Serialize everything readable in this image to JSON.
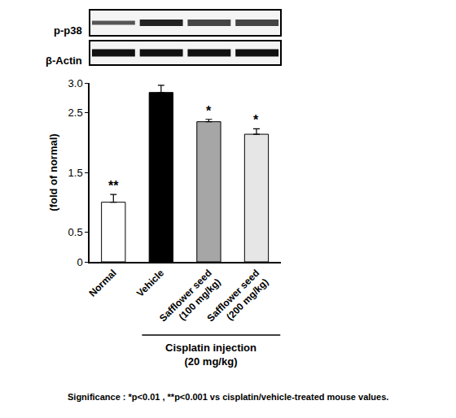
{
  "chart_data": {
    "type": "bar",
    "ylabel": "(fold of normal)",
    "categories": [
      "Normal",
      "Vehicle",
      "Safflower seed (100 mg/kg)",
      "Safflower seed (200 mg/kg)"
    ],
    "values": [
      1.0,
      2.84,
      2.35,
      2.14
    ],
    "errors": [
      0.13,
      0.12,
      0.04,
      0.09
    ],
    "colors": [
      "#ffffff",
      "#000000",
      "#a6a6a6",
      "#e6e6e6"
    ],
    "significance": [
      "**",
      null,
      "*",
      "*"
    ],
    "ylim": [
      0,
      3
    ],
    "yticks": [
      0,
      0.5,
      1.5,
      2.5,
      {
        "value": 3,
        "label": "3.0"
      }
    ],
    "grid": false,
    "blot": {
      "rows": [
        "p-p38",
        "β-Actin"
      ]
    },
    "group_label": "Cisplatin injection (20 mg/kg)",
    "footnote": "Significance : *p<0.01 , **p<0.001 vs cisplatin/vehicle-treated mouse values."
  }
}
